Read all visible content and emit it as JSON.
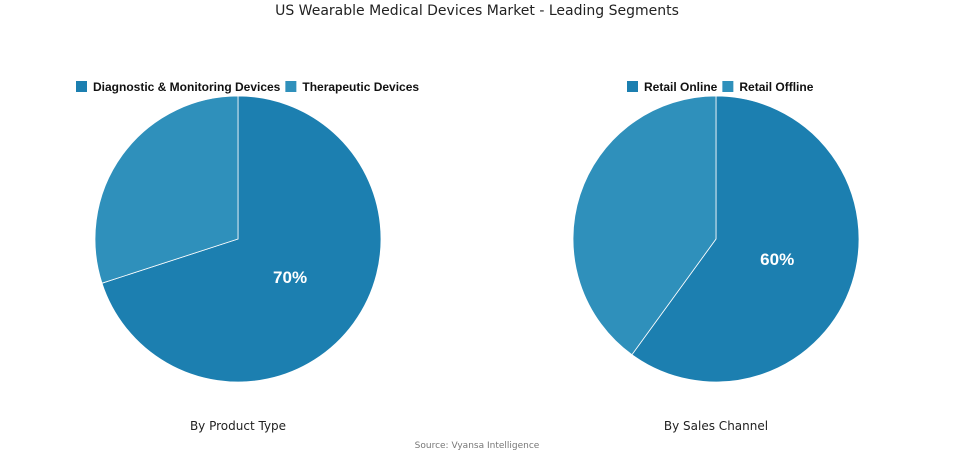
{
  "title": "US Wearable Medical Devices Market - Leading Segments",
  "source": "Source: Vyansa Intelligence",
  "chart_data": [
    {
      "type": "pie",
      "subtitle": "By Product Type",
      "legend_position": "top",
      "slices": [
        {
          "name": "Diagnostic & Monitoring Devices",
          "value": 70,
          "label": "70%",
          "color": "#1c7fb0"
        },
        {
          "name": "Therapeutic Devices",
          "value": 30,
          "label": "",
          "color": "#2f90bb"
        }
      ]
    },
    {
      "type": "pie",
      "subtitle": "By Sales Channel",
      "legend_position": "top",
      "slices": [
        {
          "name": "Retail Online",
          "value": 60,
          "label": "60%",
          "color": "#1c7fb0"
        },
        {
          "name": "Retail Offline",
          "value": 40,
          "label": "",
          "color": "#2f90bb"
        }
      ]
    }
  ]
}
